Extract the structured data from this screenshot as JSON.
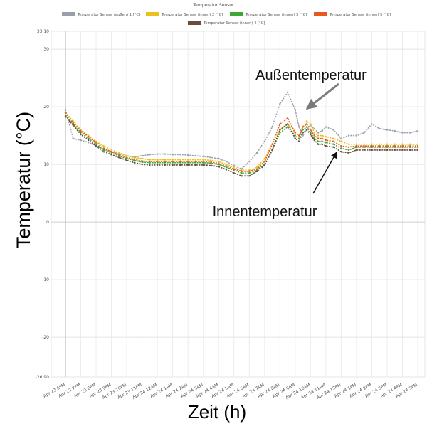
{
  "chart_data": {
    "type": "line",
    "title": "Temperatur Sensor",
    "xlabel": "Zeit (h)",
    "ylabel": "Temperatur (°C)",
    "ylim": [
      -26.9,
      33.1
    ],
    "ytick_values": [
      -20,
      -10,
      0,
      10,
      20,
      30
    ],
    "ytick_labels": [
      "-20",
      "-10",
      "0",
      "10",
      "20",
      "30"
    ],
    "ylim_labels": [
      "33.10",
      "-26.90"
    ],
    "grid": true,
    "legend_position": "top",
    "x_tick_labels": [
      "Apr 23 6PM",
      "Apr 23 7PM",
      "Apr 23 8PM",
      "Apr 23 9PM",
      "Apr 23 10PM",
      "Apr 23 11PM",
      "Apr 24 12AM",
      "Apr 24 1AM",
      "Apr 24 2AM",
      "Apr 24 3AM",
      "Apr 24 4AM",
      "Apr 24 5AM",
      "Apr 24 6AM",
      "Apr 24 7AM",
      "Apr 24 8AM",
      "Apr 24 9AM",
      "Apr 24 10AM",
      "Apr 24 11AM",
      "Apr 24 12PM",
      "Apr 24 1PM",
      "Apr 24 2PM",
      "Apr 24 3PM",
      "Apr 24 4PM",
      "Apr 24 5PM"
    ],
    "x": [
      0,
      0.5,
      1,
      1.5,
      2,
      2.5,
      3,
      3.5,
      4,
      4.5,
      5,
      5.5,
      6,
      6.5,
      7,
      7.5,
      8,
      8.5,
      9,
      9.5,
      10,
      10.5,
      11,
      11.5,
      12,
      12.5,
      13,
      13.5,
      14,
      14.5,
      15,
      15.25,
      15.5,
      15.75,
      16,
      16.25,
      16.5,
      16.75,
      17,
      17.5,
      18,
      18.5,
      19,
      19.5,
      20,
      20.5,
      21,
      21.5,
      22,
      22.5,
      23
    ],
    "series": [
      {
        "name": "Temperatur Sensor (außen)  1 [°C]",
        "color": "#9aa0ab",
        "values": [
          19.5,
          14.5,
          14.2,
          13.8,
          13.2,
          12.6,
          12.2,
          11.9,
          11.5,
          11.3,
          11.5,
          11.7,
          11.8,
          11.8,
          11.7,
          11.7,
          11.6,
          11.5,
          11.4,
          11.2,
          11.0,
          10.5,
          9.8,
          9.2,
          10.5,
          12.0,
          14.0,
          16.5,
          20.5,
          22.5,
          19.5,
          16.5,
          15.0,
          16.0,
          16.8,
          16.2,
          15.5,
          15.8,
          16.5,
          16.0,
          14.5,
          15.0,
          15.0,
          15.5,
          17.0,
          16.2,
          16.0,
          15.8,
          15.5,
          15.5,
          15.8
        ]
      },
      {
        "name": "Temperatur Sensor (innen)  2 [°C]",
        "color": "#e8c21a",
        "values": [
          19.0,
          17.5,
          16.0,
          15.0,
          14.0,
          13.2,
          12.5,
          12.0,
          11.5,
          11.2,
          11.0,
          10.8,
          10.8,
          10.8,
          10.8,
          10.8,
          10.8,
          10.8,
          10.8,
          10.7,
          10.5,
          10.0,
          9.5,
          9.0,
          9.0,
          9.5,
          11.0,
          13.5,
          16.0,
          17.0,
          15.5,
          15.0,
          16.5,
          17.5,
          17.0,
          15.5,
          15.0,
          15.0,
          14.8,
          14.5,
          14.0,
          13.5,
          13.5,
          13.5,
          13.5,
          13.5,
          13.5,
          13.5,
          13.5,
          13.5,
          13.5
        ]
      },
      {
        "name": "Temperatur Sensor (innen)  3 [°C]",
        "color": "#3aa832",
        "values": [
          18.5,
          17.0,
          15.5,
          14.5,
          13.5,
          12.5,
          12.0,
          11.5,
          11.0,
          10.7,
          10.4,
          10.3,
          10.3,
          10.3,
          10.3,
          10.3,
          10.3,
          10.3,
          10.3,
          10.2,
          10.0,
          9.5,
          9.0,
          8.5,
          8.5,
          9.0,
          10.0,
          12.5,
          15.5,
          16.5,
          15.0,
          14.5,
          16.0,
          16.5,
          15.5,
          14.5,
          14.0,
          14.0,
          13.8,
          13.5,
          12.8,
          12.5,
          13.0,
          13.0,
          13.0,
          13.0,
          13.0,
          13.0,
          13.0,
          13.0,
          13.0
        ]
      },
      {
        "name": "Temperatur Sensor (innen)  5 [°C]",
        "color": "#e8581f",
        "values": [
          19.0,
          17.2,
          15.8,
          14.8,
          13.8,
          12.8,
          12.2,
          11.7,
          11.2,
          10.9,
          10.6,
          10.5,
          10.5,
          10.5,
          10.5,
          10.5,
          10.5,
          10.5,
          10.5,
          10.4,
          10.2,
          9.7,
          9.2,
          8.8,
          8.8,
          9.2,
          10.5,
          13.5,
          17.0,
          18.0,
          15.5,
          15.0,
          16.5,
          17.0,
          16.0,
          15.0,
          14.5,
          14.5,
          14.2,
          14.0,
          13.2,
          13.0,
          13.2,
          13.2,
          13.2,
          13.2,
          13.2,
          13.2,
          13.2,
          13.2,
          13.2
        ]
      },
      {
        "name": "Temperatur Sensor (innen)  4 [°C]",
        "color": "#6b4c3b",
        "values": [
          18.3,
          16.8,
          15.2,
          14.2,
          13.2,
          12.2,
          11.7,
          11.2,
          10.7,
          10.3,
          10.0,
          9.9,
          9.9,
          9.9,
          9.9,
          9.9,
          9.9,
          9.9,
          9.9,
          9.8,
          9.6,
          9.1,
          8.5,
          8.0,
          8.0,
          8.8,
          9.8,
          12.5,
          16.0,
          17.0,
          14.5,
          14.0,
          15.5,
          16.0,
          15.2,
          14.2,
          13.5,
          13.5,
          13.2,
          13.0,
          12.2,
          12.0,
          12.5,
          12.5,
          12.5,
          12.5,
          12.5,
          12.5,
          12.5,
          12.5,
          12.5
        ]
      }
    ],
    "annotations": [
      {
        "text": "Außentemperatur",
        "target_series": 0,
        "target_x": 15.3,
        "target_y": 19.5
      },
      {
        "text": "Innentemperatur",
        "target_series": 2,
        "target_x": 18.5,
        "target_y": 13.5
      }
    ]
  }
}
